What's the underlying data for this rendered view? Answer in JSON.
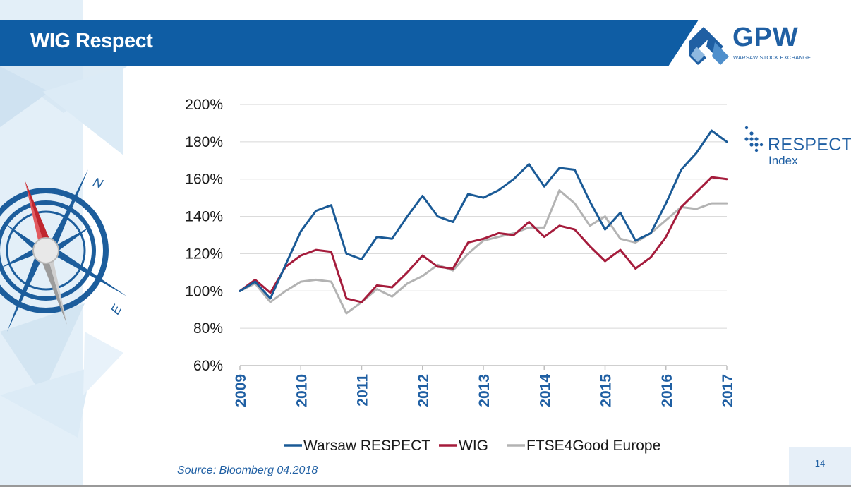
{
  "slide": {
    "title": "WIG Respect",
    "logo": {
      "name": "GPW",
      "subtitle": "WARSAW STOCK EXCHANGE"
    },
    "respect_logo": {
      "line1": "RESPECT",
      "line2": "Index"
    },
    "source": "Source: Bloomberg 04.2018",
    "page_number": "14",
    "colors": {
      "header": "#0f5da4",
      "accent": "#1f5fa3",
      "background_panel": "#e3eff8"
    }
  },
  "chart_data": {
    "type": "line",
    "title": "",
    "xlabel": "",
    "ylabel": "",
    "x_ticks": [
      "2009",
      "2010",
      "2011",
      "2012",
      "2013",
      "2014",
      "2015",
      "2016",
      "2017"
    ],
    "y_ticks": [
      "200%",
      "180%",
      "160%",
      "140%",
      "120%",
      "100%",
      "80%",
      "60%"
    ],
    "xlim": [
      2009,
      2017
    ],
    "ylim": [
      60,
      200
    ],
    "grid": true,
    "legend_position": "bottom",
    "series": [
      {
        "name": "Warsaw RESPECT",
        "color": "#1a5a96",
        "x": [
          2009.0,
          2009.25,
          2009.5,
          2009.75,
          2010.0,
          2010.25,
          2010.5,
          2010.75,
          2011.0,
          2011.25,
          2011.5,
          2011.75,
          2012.0,
          2012.25,
          2012.5,
          2012.75,
          2013.0,
          2013.25,
          2013.5,
          2013.75,
          2014.0,
          2014.25,
          2014.5,
          2014.75,
          2015.0,
          2015.25,
          2015.5,
          2015.75,
          2016.0,
          2016.25,
          2016.5,
          2016.75,
          2017.0
        ],
        "values": [
          100,
          105,
          96,
          114,
          132,
          143,
          146,
          120,
          117,
          129,
          128,
          140,
          151,
          140,
          137,
          152,
          150,
          154,
          160,
          168,
          156,
          166,
          165,
          148,
          133,
          142,
          127,
          131,
          147,
          165,
          174,
          186,
          180
        ]
      },
      {
        "name": "WIG",
        "color": "#a51c3c",
        "x": [
          2009.0,
          2009.25,
          2009.5,
          2009.75,
          2010.0,
          2010.25,
          2010.5,
          2010.75,
          2011.0,
          2011.25,
          2011.5,
          2011.75,
          2012.0,
          2012.25,
          2012.5,
          2012.75,
          2013.0,
          2013.25,
          2013.5,
          2013.75,
          2014.0,
          2014.25,
          2014.5,
          2014.75,
          2015.0,
          2015.25,
          2015.5,
          2015.75,
          2016.0,
          2016.25,
          2016.5,
          2016.75,
          2017.0
        ],
        "values": [
          100,
          106,
          99,
          113,
          119,
          122,
          121,
          96,
          94,
          103,
          102,
          110,
          119,
          113,
          112,
          126,
          128,
          131,
          130,
          137,
          129,
          135,
          133,
          124,
          116,
          122,
          112,
          118,
          129,
          145,
          153,
          161,
          160
        ]
      },
      {
        "name": "FTSE4Good Europe",
        "color": "#b3b3b3",
        "x": [
          2009.0,
          2009.25,
          2009.5,
          2009.75,
          2010.0,
          2010.25,
          2010.5,
          2010.75,
          2011.0,
          2011.25,
          2011.5,
          2011.75,
          2012.0,
          2012.25,
          2012.5,
          2012.75,
          2013.0,
          2013.25,
          2013.5,
          2013.75,
          2014.0,
          2014.25,
          2014.5,
          2014.75,
          2015.0,
          2015.25,
          2015.5,
          2015.75,
          2016.0,
          2016.25,
          2016.5,
          2016.75,
          2017.0
        ],
        "values": [
          100,
          104,
          94,
          100,
          105,
          106,
          105,
          88,
          94,
          101,
          97,
          104,
          108,
          114,
          111,
          120,
          127,
          129,
          131,
          134,
          134,
          154,
          147,
          135,
          140,
          128,
          126,
          131,
          138,
          145,
          144,
          147,
          147
        ]
      }
    ]
  }
}
